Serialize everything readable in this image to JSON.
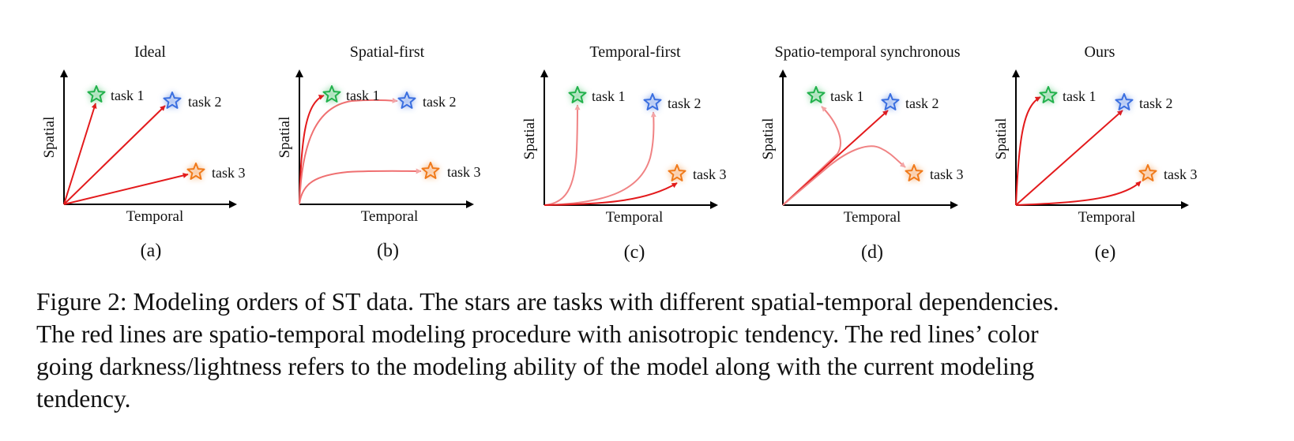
{
  "panels": [
    {
      "title": "Ideal",
      "sub": "(a)",
      "xlabel": "Temporal",
      "ylabel": "Spatial",
      "tasks": [
        "task 1",
        "task 2",
        "task 3"
      ]
    },
    {
      "title": "Spatial-first",
      "sub": "(b)",
      "xlabel": "Temporal",
      "ylabel": "Spatial",
      "tasks": [
        "task 1",
        "task 2",
        "task 3"
      ]
    },
    {
      "title": "Temporal-first",
      "sub": "(c)",
      "xlabel": "Temporal",
      "ylabel": "Spatial",
      "tasks": [
        "task 1",
        "task 2",
        "task 3"
      ]
    },
    {
      "title": "Spatio-temporal synchronous",
      "sub": "(d)",
      "xlabel": "Temporal",
      "ylabel": "Spatial",
      "tasks": [
        "task 1",
        "task 2",
        "task 3"
      ]
    },
    {
      "title": "Ours",
      "sub": "(e)",
      "xlabel": "Temporal",
      "ylabel": "Spatial",
      "tasks": [
        "task 1",
        "task 2",
        "task 3"
      ]
    }
  ],
  "colors": {
    "task1": "#22b14c",
    "task2": "#3b6fe0",
    "task3": "#f07a1a",
    "line": "#e31a1c",
    "axis": "#000000"
  },
  "caption": {
    "lines": [
      "Figure 2: Modeling orders of ST data. The stars are tasks with different spatial-temporal dependencies.",
      "The red lines are spatio-temporal modeling procedure with anisotropic tendency. The red lines’ color",
      "going darkness/lightness refers to the modeling ability of the model along with the current modeling",
      "tendency."
    ]
  }
}
